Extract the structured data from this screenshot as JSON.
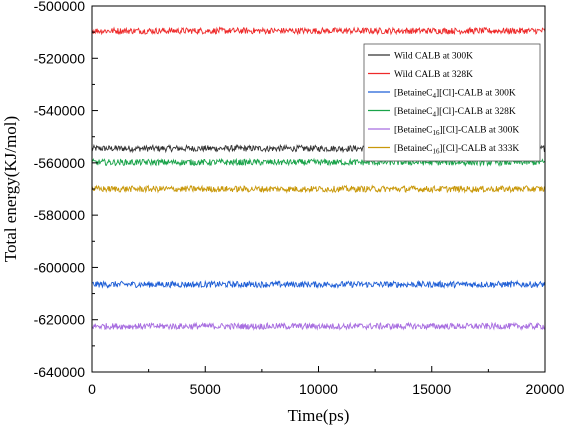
{
  "chart_data": {
    "type": "line",
    "title": "",
    "xlabel": "Time(ps)",
    "ylabel": "Total energy(KJ/mol)",
    "xlim": [
      0,
      20000
    ],
    "ylim": [
      -640000,
      -500000
    ],
    "x_ticks": [
      "0",
      "5000",
      "10000",
      "15000",
      "20000"
    ],
    "y_ticks": [
      "-500000",
      "-520000",
      "-540000",
      "-560000",
      "-580000",
      "-600000",
      "-620000",
      "-640000"
    ],
    "grid": false,
    "legend_position": "top-right",
    "x": [
      0,
      20000
    ],
    "series": [
      {
        "name": "Wild CALB at 300K",
        "label_main": "Wild CALB at 300K",
        "label_sub": "",
        "label_tail": "",
        "color": "#333333",
        "values": [
          -554500,
          -554500
        ],
        "noise": 1200
      },
      {
        "name": "Wild CALB at 328K",
        "label_main": "Wild CALB at 328K",
        "label_sub": "",
        "label_tail": "",
        "color": "#ee2a2a",
        "values": [
          -509500,
          -509500
        ],
        "noise": 1200
      },
      {
        "name": "[BetaineC4][Cl]-CALB at 300K",
        "label_main": "[BetaineC",
        "label_sub": "4",
        "label_tail": "][Cl]-CALB at 300K",
        "color": "#1f5fd6",
        "values": [
          -606500,
          -606500
        ],
        "noise": 1200
      },
      {
        "name": "[BetaineC4][Cl]-CALB at 328K",
        "label_main": "[BetaineC",
        "label_sub": "4",
        "label_tail": "][Cl]-CALB at 328K",
        "color": "#1aa34a",
        "values": [
          -559800,
          -559800
        ],
        "noise": 1200
      },
      {
        "name": "[BetaineC16][Cl]-CALB at 300K",
        "label_main": "[BetaineC",
        "label_sub": "16",
        "label_tail": "][Cl]-CALB at 300K",
        "color": "#a86ee0",
        "values": [
          -622500,
          -622500
        ],
        "noise": 1200
      },
      {
        "name": "[BetaineC16][Cl]-CALB at 333K",
        "label_main": "[BetaineC",
        "label_sub": "16",
        "label_tail": "][Cl]-CALB at 333K",
        "color": "#c9980a",
        "values": [
          -570000,
          -570000
        ],
        "noise": 1200
      }
    ]
  }
}
